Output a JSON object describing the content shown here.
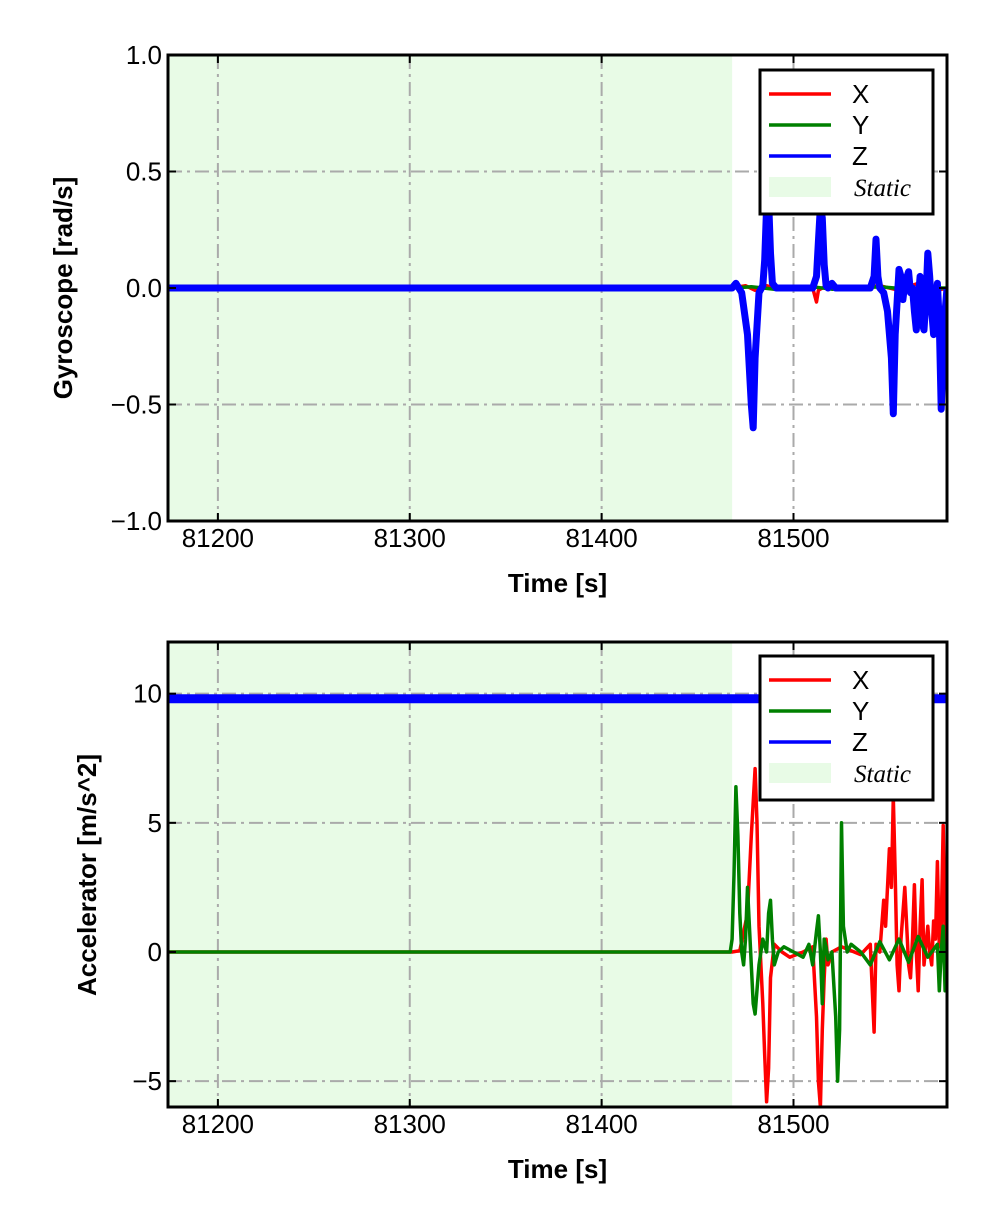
{
  "chart_data": [
    {
      "type": "line",
      "ylabel": "Gyroscope [rad/s]",
      "xlabel": "Time [s]",
      "xlim": [
        81174,
        81580
      ],
      "ylim": [
        -1.0,
        1.0
      ],
      "xticks": [
        81200,
        81300,
        81400,
        81500
      ],
      "xtick_labels": [
        "81200",
        "81300",
        "81400",
        "81500"
      ],
      "yticks": [
        1.0,
        0.5,
        0.0,
        -0.5,
        -1.0
      ],
      "ytick_labels": [
        "1.0",
        "0.5",
        "0.0",
        "−0.5",
        "−1.0"
      ],
      "grid": true,
      "legend_position": "top-right",
      "static_region": {
        "label": "Static",
        "x": [
          81174,
          81468
        ],
        "color": "#e8fbe6"
      },
      "series": [
        {
          "name": "X",
          "color": "#ff0000",
          "x": [
            81174,
            81468,
            81475,
            81480,
            81486,
            81490,
            81500,
            81510,
            81511,
            81512,
            81513,
            81515,
            81520,
            81530,
            81545,
            81555,
            81565,
            81575,
            81580
          ],
          "y": [
            0.0,
            0.0,
            0.01,
            -0.01,
            0.01,
            0.0,
            0.0,
            0.0,
            -0.03,
            -0.06,
            -0.01,
            0.0,
            0.01,
            0.0,
            0.01,
            -0.01,
            0.02,
            -0.01,
            0.0
          ]
        },
        {
          "name": "Y",
          "color": "#008000",
          "x": [
            81174,
            81468,
            81478,
            81490,
            81500,
            81510,
            81520,
            81530,
            81545,
            81560,
            81570,
            81580
          ],
          "y": [
            0.0,
            0.0,
            0.005,
            -0.005,
            0.0,
            0.005,
            -0.005,
            0.0,
            0.005,
            -0.005,
            0.0,
            0.0
          ],
          "drawn_before": "Z"
        },
        {
          "name": "Z",
          "color": "#0000ff",
          "x": [
            81174,
            81468,
            81470,
            81473,
            81476,
            81478,
            81479,
            81480,
            81482,
            81484,
            81485,
            81486,
            81487,
            81488,
            81489,
            81491,
            81500,
            81510,
            81512,
            81513,
            81514,
            81515,
            81516,
            81517,
            81518,
            81520,
            81522,
            81530,
            81540,
            81542,
            81543,
            81544,
            81545,
            81547,
            81549,
            81551,
            81552,
            81553,
            81555,
            81556,
            81557,
            81558,
            81560,
            81561,
            81562,
            81563,
            81564,
            81565,
            81566,
            81567,
            81568,
            81569,
            81570,
            81571,
            81572,
            81573,
            81574,
            81575,
            81576,
            81577,
            81578,
            81579,
            81580
          ],
          "y": [
            0.0,
            0.0,
            0.02,
            -0.02,
            -0.2,
            -0.5,
            -0.6,
            -0.3,
            -0.02,
            0.01,
            0.12,
            0.35,
            0.38,
            0.15,
            0.02,
            0.0,
            0.0,
            0.0,
            0.05,
            0.2,
            0.35,
            0.3,
            0.1,
            0.01,
            0.0,
            0.02,
            0.0,
            0.0,
            0.0,
            0.05,
            0.21,
            0.05,
            0.0,
            -0.02,
            -0.1,
            -0.3,
            -0.54,
            -0.2,
            0.08,
            0.05,
            -0.05,
            0.02,
            0.07,
            -0.02,
            0.0,
            -0.1,
            -0.18,
            -0.05,
            0.05,
            -0.15,
            -0.18,
            -0.05,
            0.15,
            0.05,
            -0.1,
            -0.2,
            -0.05,
            0.02,
            -0.15,
            -0.52,
            -0.3,
            -0.1,
            0.0
          ]
        }
      ],
      "legend": [
        {
          "label": "X",
          "color": "#ff0000",
          "kind": "line"
        },
        {
          "label": "Y",
          "color": "#008000",
          "kind": "line"
        },
        {
          "label": "Z",
          "color": "#0000ff",
          "kind": "line"
        },
        {
          "label": "Static",
          "color": "#e8fbe6",
          "kind": "patch"
        }
      ]
    },
    {
      "type": "line",
      "ylabel": "Accelerator [m/s^2]",
      "xlabel": "Time [s]",
      "xlim": [
        81174,
        81580
      ],
      "ylim": [
        -6.0,
        12.0
      ],
      "xticks": [
        81200,
        81300,
        81400,
        81500
      ],
      "xtick_labels": [
        "81200",
        "81300",
        "81400",
        "81500"
      ],
      "yticks": [
        10,
        5,
        0,
        -5
      ],
      "ytick_labels": [
        "10",
        "5",
        "0",
        "−5"
      ],
      "grid": true,
      "legend_position": "top-right",
      "static_region": {
        "label": "Static",
        "x": [
          81174,
          81468
        ],
        "color": "#e8fbe6"
      },
      "series": [
        {
          "name": "X",
          "color": "#ff0000",
          "x": [
            81174,
            81468,
            81472,
            81476,
            81478,
            81480,
            81481,
            81482,
            81484,
            81485,
            81486,
            81487,
            81488,
            81490,
            81494,
            81498,
            81505,
            81510,
            81512,
            81513,
            81514,
            81515,
            81516,
            81517,
            81518,
            81520,
            81525,
            81535,
            81540,
            81542,
            81543,
            81545,
            81547,
            81548,
            81550,
            81551,
            81552,
            81553,
            81554,
            81555,
            81556,
            81558,
            81560,
            81561,
            81562,
            81563,
            81564,
            81565,
            81566,
            81567,
            81568,
            81570,
            81571,
            81572,
            81573,
            81574,
            81575,
            81576,
            81577,
            81578,
            81579,
            81580
          ],
          "y": [
            0.0,
            0.0,
            0.05,
            1.5,
            4.5,
            7.1,
            5.0,
            1.0,
            -2.0,
            -4.0,
            -5.8,
            -4.5,
            -1.0,
            0.3,
            0.0,
            -0.2,
            0.0,
            0.2,
            -2.5,
            -5.0,
            -6.0,
            -3.0,
            -1.0,
            0.5,
            -0.5,
            0.0,
            0.2,
            -0.1,
            0.3,
            -3.1,
            0.3,
            0.0,
            2.0,
            1.0,
            4.0,
            2.5,
            6.0,
            3.0,
            -0.5,
            -1.5,
            0.5,
            2.5,
            -0.5,
            -1.0,
            0.5,
            2.6,
            0.0,
            -1.5,
            1.0,
            2.8,
            -0.5,
            1.0,
            0.0,
            -0.5,
            1.2,
            0.5,
            3.5,
            0.2,
            1.0,
            4.9,
            0.5,
            0.0
          ]
        },
        {
          "name": "Y",
          "color": "#008000",
          "x": [
            81174,
            81467,
            81468,
            81469,
            81470,
            81471,
            81472,
            81473,
            81474,
            81475,
            81476,
            81477,
            81478,
            81479,
            81480,
            81482,
            81484,
            81486,
            81487,
            81488,
            81489,
            81490,
            81492,
            81495,
            81500,
            81505,
            81508,
            81510,
            81512,
            81513,
            81514,
            81515,
            81516,
            81517,
            81518,
            81520,
            81522,
            81523,
            81524,
            81525,
            81526,
            81528,
            81530,
            81535,
            81540,
            81545,
            81550,
            81555,
            81560,
            81565,
            81570,
            81575,
            81576,
            81577,
            81578,
            81579,
            81580
          ],
          "y": [
            0.0,
            0.0,
            0.5,
            3.0,
            6.4,
            4.5,
            1.5,
            0.0,
            -0.5,
            0.5,
            2.5,
            1.0,
            -0.5,
            -2.0,
            -2.4,
            -0.5,
            0.5,
            0.0,
            1.5,
            2.0,
            0.5,
            -0.5,
            0.0,
            0.2,
            0.0,
            -0.2,
            0.3,
            -0.5,
            0.8,
            1.4,
            0.0,
            -2.0,
            0.5,
            0.2,
            -0.3,
            0.0,
            -2.5,
            -5.0,
            -3.0,
            5.0,
            1.0,
            0.0,
            0.3,
            0.0,
            -0.5,
            0.4,
            -0.3,
            0.5,
            -0.4,
            0.6,
            -0.2,
            0.3,
            -1.5,
            0.0,
            1.0,
            -1.5,
            0.0
          ]
        },
        {
          "name": "Z",
          "color": "#0000ff",
          "x": [
            81174,
            81580
          ],
          "y": [
            9.8,
            9.8
          ]
        }
      ],
      "legend": [
        {
          "label": "X",
          "color": "#ff0000",
          "kind": "line"
        },
        {
          "label": "Y",
          "color": "#008000",
          "kind": "line"
        },
        {
          "label": "Z",
          "color": "#0000ff",
          "kind": "line"
        },
        {
          "label": "Static",
          "color": "#e8fbe6",
          "kind": "patch"
        }
      ]
    }
  ]
}
